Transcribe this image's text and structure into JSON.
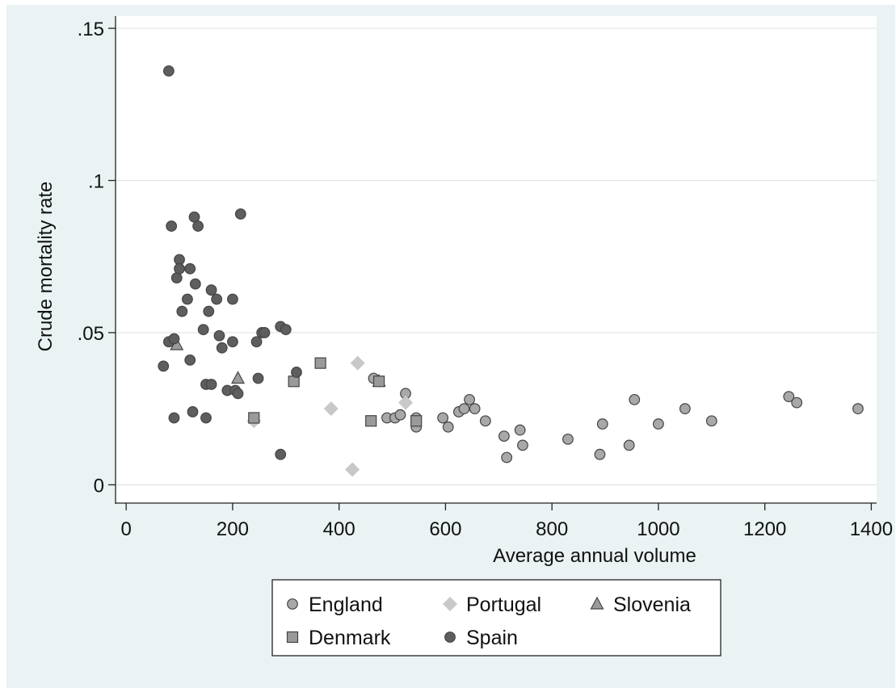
{
  "chart_data": {
    "type": "scatter",
    "xlabel": "Average annual volume",
    "ylabel": "Crude mortality rate",
    "xlim": [
      -20,
      1410
    ],
    "ylim": [
      -0.006,
      0.154
    ],
    "x_ticks": [
      0,
      200,
      400,
      600,
      800,
      1000,
      1200,
      1400
    ],
    "x_tick_labels": [
      "0",
      "200",
      "400",
      "600",
      "800",
      "1000",
      "1200",
      "1400"
    ],
    "y_ticks": [
      0,
      0.05,
      0.1,
      0.15
    ],
    "y_tick_labels": [
      "0",
      ".05",
      ".1",
      ".15"
    ],
    "grid": true,
    "legend_position": "bottom",
    "colors": {
      "england": "#a8a8a8",
      "portugal": "#c8c8c8",
      "slovenia": "#9c9c9c",
      "denmark": "#9a9a9a",
      "spain": "#5e5e5e",
      "grid": "#e3e3e3",
      "outer_background": "#eaf2f3"
    },
    "series": [
      {
        "name": "England",
        "marker": "circle",
        "points": [
          [
            465,
            0.035
          ],
          [
            490,
            0.022
          ],
          [
            505,
            0.022
          ],
          [
            515,
            0.023
          ],
          [
            525,
            0.03
          ],
          [
            545,
            0.022
          ],
          [
            545,
            0.019
          ],
          [
            595,
            0.022
          ],
          [
            605,
            0.019
          ],
          [
            625,
            0.024
          ],
          [
            635,
            0.025
          ],
          [
            645,
            0.028
          ],
          [
            655,
            0.025
          ],
          [
            675,
            0.021
          ],
          [
            710,
            0.016
          ],
          [
            715,
            0.009
          ],
          [
            740,
            0.018
          ],
          [
            745,
            0.013
          ],
          [
            830,
            0.015
          ],
          [
            890,
            0.01
          ],
          [
            895,
            0.02
          ],
          [
            945,
            0.013
          ],
          [
            955,
            0.028
          ],
          [
            1000,
            0.02
          ],
          [
            1050,
            0.025
          ],
          [
            1100,
            0.021
          ],
          [
            1245,
            0.029
          ],
          [
            1260,
            0.027
          ],
          [
            1375,
            0.025
          ]
        ]
      },
      {
        "name": "Portugal",
        "marker": "diamond",
        "points": [
          [
            240,
            0.021
          ],
          [
            385,
            0.025
          ],
          [
            425,
            0.005
          ],
          [
            435,
            0.04
          ],
          [
            525,
            0.027
          ]
        ]
      },
      {
        "name": "Slovenia",
        "marker": "triangle",
        "points": [
          [
            95,
            0.046
          ],
          [
            210,
            0.035
          ],
          [
            475,
            0.034
          ]
        ]
      },
      {
        "name": "Denmark",
        "marker": "square",
        "points": [
          [
            240,
            0.022
          ],
          [
            315,
            0.034
          ],
          [
            365,
            0.04
          ],
          [
            460,
            0.021
          ],
          [
            475,
            0.034
          ],
          [
            545,
            0.021
          ]
        ]
      },
      {
        "name": "Spain",
        "marker": "circle",
        "points": [
          [
            70,
            0.039
          ],
          [
            80,
            0.136
          ],
          [
            80,
            0.047
          ],
          [
            85,
            0.085
          ],
          [
            90,
            0.022
          ],
          [
            90,
            0.048
          ],
          [
            95,
            0.068
          ],
          [
            100,
            0.074
          ],
          [
            100,
            0.071
          ],
          [
            105,
            0.057
          ],
          [
            115,
            0.061
          ],
          [
            120,
            0.041
          ],
          [
            120,
            0.071
          ],
          [
            125,
            0.024
          ],
          [
            128,
            0.088
          ],
          [
            130,
            0.066
          ],
          [
            135,
            0.085
          ],
          [
            145,
            0.051
          ],
          [
            150,
            0.022
          ],
          [
            150,
            0.033
          ],
          [
            155,
            0.057
          ],
          [
            160,
            0.033
          ],
          [
            160,
            0.064
          ],
          [
            170,
            0.061
          ],
          [
            175,
            0.049
          ],
          [
            180,
            0.045
          ],
          [
            190,
            0.031
          ],
          [
            200,
            0.047
          ],
          [
            200,
            0.061
          ],
          [
            205,
            0.031
          ],
          [
            210,
            0.03
          ],
          [
            215,
            0.089
          ],
          [
            245,
            0.047
          ],
          [
            248,
            0.035
          ],
          [
            255,
            0.05
          ],
          [
            260,
            0.05
          ],
          [
            290,
            0.052
          ],
          [
            290,
            0.01
          ],
          [
            300,
            0.051
          ],
          [
            320,
            0.037
          ]
        ]
      }
    ]
  }
}
